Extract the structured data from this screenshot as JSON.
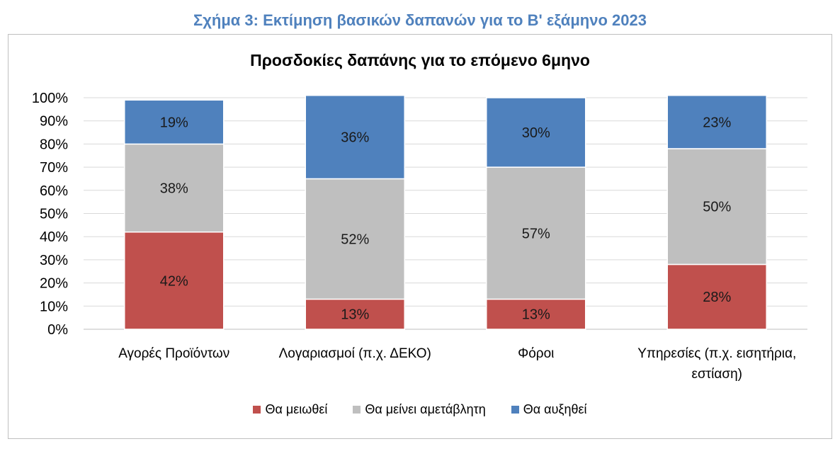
{
  "figure_title": "Σχήμα 3: Εκτίμηση βασικών δαπανών για το Β' εξάμηνο 2023",
  "chart_data": {
    "type": "bar",
    "stacked": true,
    "title": "Προσδοκίες δαπάνης για το επόμενο 6μηνο",
    "categories": [
      [
        "Αγορές Προϊόντων"
      ],
      [
        "Λογαριασμοί (π.χ. ΔΕΚΟ)"
      ],
      [
        "Φόροι"
      ],
      [
        "Υπηρεσίες (π.χ. εισητήρια,",
        "εστίαση)"
      ]
    ],
    "series": [
      {
        "name": "Θα μειωθεί",
        "color": "#c0504d",
        "values": [
          42,
          13,
          13,
          28
        ],
        "labels": [
          "42%",
          "13%",
          "13%",
          "28%"
        ]
      },
      {
        "name": "Θα μείνει αμετάβλητη",
        "color": "#bfbfbf",
        "values": [
          38,
          52,
          57,
          50
        ],
        "labels": [
          "38%",
          "52%",
          "57%",
          "50%"
        ]
      },
      {
        "name": "Θα αυξηθεί",
        "color": "#4f81bd",
        "values": [
          19,
          36,
          30,
          23
        ],
        "labels": [
          "19%",
          "36%",
          "30%",
          "23%"
        ]
      }
    ],
    "ylim": [
      0,
      100
    ],
    "yticks": [
      "0%",
      "10%",
      "20%",
      "30%",
      "40%",
      "50%",
      "60%",
      "70%",
      "80%",
      "90%",
      "100%"
    ],
    "grid": true,
    "legend": "bottom"
  }
}
